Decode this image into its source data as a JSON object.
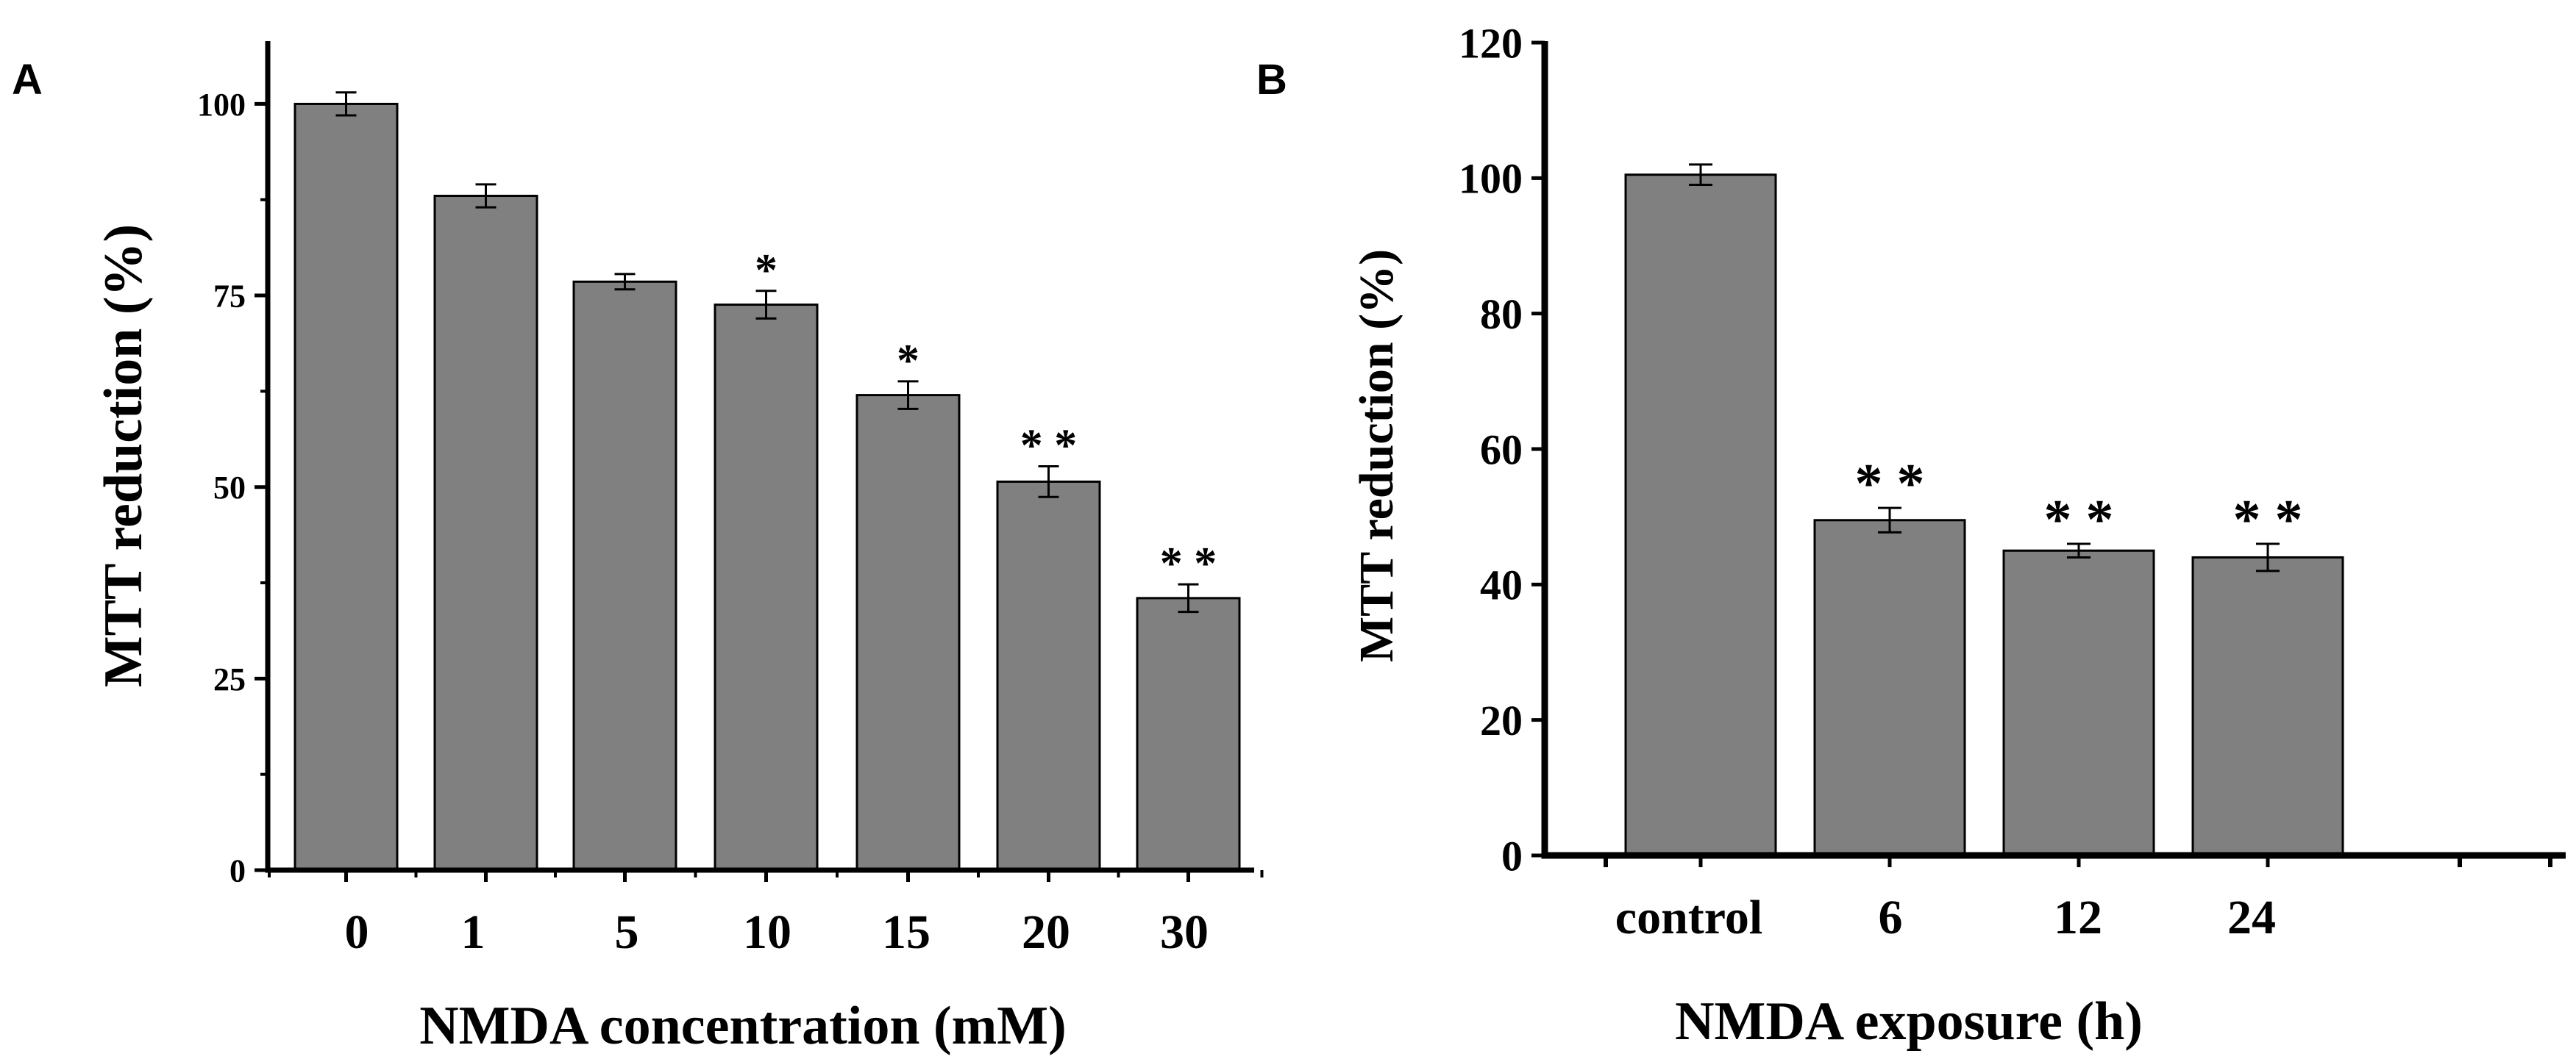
{
  "chart_data": [
    {
      "panel": "A",
      "type": "bar",
      "title": "",
      "xlabel": "NMDA concentration (mM)",
      "ylabel": "MTT reduction (%)",
      "ylim": [
        0,
        108
      ],
      "yticks": [
        0,
        25,
        50,
        75,
        100
      ],
      "grid": false,
      "categories": [
        "0",
        "1",
        "5",
        "10",
        "15",
        "20",
        "30"
      ],
      "values": [
        100,
        88,
        76.8,
        73.8,
        62,
        50.7,
        35.5
      ],
      "errors": [
        1.5,
        1.5,
        1,
        1.8,
        1.8,
        2,
        1.8
      ],
      "annotations": [
        "",
        "",
        "",
        "*",
        "*",
        "**",
        "**"
      ],
      "bar_color": "#808080"
    },
    {
      "panel": "B",
      "type": "bar",
      "title": "",
      "xlabel": "NMDA exposure (h)",
      "ylabel": "MTT reduction (%)",
      "ylim": [
        0,
        120
      ],
      "yticks": [
        0,
        20,
        40,
        60,
        80,
        100,
        120
      ],
      "grid": false,
      "categories": [
        "control",
        "6",
        "12",
        "24"
      ],
      "values": [
        100.5,
        49.5,
        45,
        44
      ],
      "errors": [
        1.5,
        1.8,
        1,
        2
      ],
      "annotations": [
        "",
        "**",
        "**",
        "**"
      ],
      "bar_color": "#808080"
    }
  ]
}
